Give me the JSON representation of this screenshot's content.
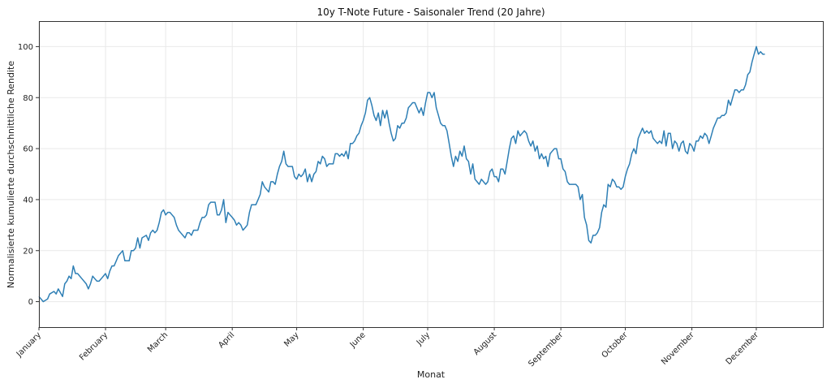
{
  "chart_data": {
    "type": "line",
    "title": "10y T-Note Future - Saisonaler Trend (20 Jahre)",
    "xlabel": "Monat",
    "ylabel": "Normalisierte kumulierte durchschnittliche Rendite",
    "xlim": [
      0,
      365
    ],
    "ylim": [
      -10,
      110
    ],
    "yticks": [
      0,
      20,
      40,
      60,
      80,
      100
    ],
    "grid": true,
    "color": "#2e7fb5",
    "months": [
      {
        "label": "January",
        "day": 0
      },
      {
        "label": "February",
        "day": 31
      },
      {
        "label": "March",
        "day": 59
      },
      {
        "label": "April",
        "day": 90
      },
      {
        "label": "May",
        "day": 120
      },
      {
        "label": "June",
        "day": 151
      },
      {
        "label": "July",
        "day": 181
      },
      {
        "label": "August",
        "day": 212
      },
      {
        "label": "September",
        "day": 243
      },
      {
        "label": "October",
        "day": 273
      },
      {
        "label": "November",
        "day": 304
      },
      {
        "label": "December",
        "day": 334
      }
    ],
    "series": [
      {
        "values": [
          [
            0,
            2
          ],
          [
            2,
            0
          ],
          [
            4,
            1
          ],
          [
            5,
            3
          ],
          [
            7,
            4
          ],
          [
            8,
            3
          ],
          [
            9,
            5
          ],
          [
            11,
            2
          ],
          [
            12,
            7
          ],
          [
            13,
            8
          ],
          [
            14,
            10
          ],
          [
            15,
            9
          ],
          [
            16,
            14
          ],
          [
            17,
            11
          ],
          [
            18,
            11
          ],
          [
            20,
            9
          ],
          [
            22,
            7
          ],
          [
            23,
            5
          ],
          [
            24,
            7
          ],
          [
            25,
            10
          ],
          [
            26,
            9
          ],
          [
            27,
            8
          ],
          [
            28,
            8
          ],
          [
            29,
            9
          ],
          [
            31,
            11
          ],
          [
            32,
            9
          ],
          [
            33,
            12
          ],
          [
            34,
            14
          ],
          [
            35,
            14
          ],
          [
            36,
            16
          ],
          [
            37,
            18
          ],
          [
            38,
            19
          ],
          [
            39,
            20
          ],
          [
            40,
            16
          ],
          [
            42,
            16
          ],
          [
            43,
            20
          ],
          [
            44,
            20
          ],
          [
            45,
            21
          ],
          [
            46,
            25
          ],
          [
            47,
            21
          ],
          [
            48,
            25
          ],
          [
            50,
            26
          ],
          [
            51,
            24
          ],
          [
            52,
            27
          ],
          [
            53,
            28
          ],
          [
            54,
            27
          ],
          [
            55,
            28
          ],
          [
            56,
            31
          ],
          [
            57,
            35
          ],
          [
            58,
            36
          ],
          [
            59,
            34
          ],
          [
            60,
            35
          ],
          [
            61,
            35
          ],
          [
            62,
            34
          ],
          [
            63,
            33
          ],
          [
            64,
            30
          ],
          [
            65,
            28
          ],
          [
            66,
            27
          ],
          [
            67,
            26
          ],
          [
            68,
            25
          ],
          [
            69,
            27
          ],
          [
            70,
            27
          ],
          [
            71,
            26
          ],
          [
            72,
            28
          ],
          [
            73,
            28
          ],
          [
            74,
            28
          ],
          [
            75,
            31
          ],
          [
            76,
            33
          ],
          [
            77,
            33
          ],
          [
            78,
            34
          ],
          [
            79,
            38
          ],
          [
            80,
            39
          ],
          [
            81,
            39
          ],
          [
            82,
            39
          ],
          [
            83,
            34
          ],
          [
            84,
            34
          ],
          [
            85,
            36
          ],
          [
            86,
            40
          ],
          [
            87,
            31
          ],
          [
            88,
            35
          ],
          [
            89,
            34
          ],
          [
            90,
            33
          ],
          [
            91,
            32
          ],
          [
            92,
            30
          ],
          [
            93,
            31
          ],
          [
            94,
            30
          ],
          [
            95,
            28
          ],
          [
            96,
            29
          ],
          [
            97,
            30
          ],
          [
            98,
            35
          ],
          [
            99,
            38
          ],
          [
            100,
            38
          ],
          [
            101,
            38
          ],
          [
            102,
            40
          ],
          [
            103,
            42
          ],
          [
            104,
            47
          ],
          [
            105,
            45
          ],
          [
            106,
            44
          ],
          [
            107,
            43
          ],
          [
            108,
            47
          ],
          [
            109,
            47
          ],
          [
            110,
            46
          ],
          [
            111,
            50
          ],
          [
            112,
            53
          ],
          [
            113,
            55
          ],
          [
            114,
            59
          ],
          [
            115,
            54
          ],
          [
            116,
            53
          ],
          [
            117,
            53
          ],
          [
            118,
            53
          ],
          [
            119,
            49
          ],
          [
            120,
            48
          ],
          [
            121,
            50
          ],
          [
            122,
            49
          ],
          [
            123,
            50
          ],
          [
            124,
            52
          ],
          [
            125,
            47
          ],
          [
            126,
            50
          ],
          [
            127,
            47
          ],
          [
            128,
            50
          ],
          [
            129,
            51
          ],
          [
            130,
            55
          ],
          [
            131,
            54
          ],
          [
            132,
            57
          ],
          [
            133,
            56
          ],
          [
            134,
            53
          ],
          [
            135,
            54
          ],
          [
            136,
            54
          ],
          [
            137,
            54
          ],
          [
            138,
            58
          ],
          [
            139,
            58
          ],
          [
            140,
            57
          ],
          [
            141,
            58
          ],
          [
            142,
            57
          ],
          [
            143,
            59
          ],
          [
            144,
            56
          ],
          [
            145,
            62
          ],
          [
            146,
            62
          ],
          [
            147,
            63
          ],
          [
            148,
            65
          ],
          [
            149,
            66
          ],
          [
            150,
            69
          ],
          [
            151,
            71
          ],
          [
            152,
            74
          ],
          [
            153,
            79
          ],
          [
            154,
            80
          ],
          [
            155,
            77
          ],
          [
            156,
            73
          ],
          [
            157,
            71
          ],
          [
            158,
            74
          ],
          [
            159,
            69
          ],
          [
            160,
            75
          ],
          [
            161,
            72
          ],
          [
            162,
            75
          ],
          [
            163,
            70
          ],
          [
            164,
            66
          ],
          [
            165,
            63
          ],
          [
            166,
            64
          ],
          [
            167,
            69
          ],
          [
            168,
            68
          ],
          [
            169,
            70
          ],
          [
            170,
            70
          ],
          [
            171,
            72
          ],
          [
            172,
            76
          ],
          [
            173,
            77
          ],
          [
            174,
            78
          ],
          [
            175,
            78
          ],
          [
            176,
            76
          ],
          [
            177,
            74
          ],
          [
            178,
            76
          ],
          [
            179,
            73
          ],
          [
            180,
            78
          ],
          [
            181,
            82
          ],
          [
            182,
            82
          ],
          [
            183,
            80
          ],
          [
            184,
            82
          ],
          [
            185,
            76
          ],
          [
            186,
            73
          ],
          [
            187,
            70
          ],
          [
            188,
            69
          ],
          [
            189,
            69
          ],
          [
            190,
            67
          ],
          [
            191,
            62
          ],
          [
            192,
            57
          ],
          [
            193,
            53
          ],
          [
            194,
            57
          ],
          [
            195,
            55
          ],
          [
            196,
            59
          ],
          [
            197,
            57
          ],
          [
            198,
            61
          ],
          [
            199,
            56
          ],
          [
            200,
            55
          ],
          [
            201,
            50
          ],
          [
            202,
            54
          ],
          [
            203,
            48
          ],
          [
            204,
            47
          ],
          [
            205,
            46
          ],
          [
            206,
            48
          ],
          [
            207,
            47
          ],
          [
            208,
            46
          ],
          [
            209,
            47
          ],
          [
            210,
            51
          ],
          [
            211,
            52
          ],
          [
            212,
            49
          ],
          [
            213,
            49
          ],
          [
            214,
            47
          ],
          [
            215,
            52
          ],
          [
            216,
            52
          ],
          [
            217,
            50
          ],
          [
            218,
            55
          ],
          [
            219,
            60
          ],
          [
            220,
            64
          ],
          [
            221,
            65
          ],
          [
            222,
            62
          ],
          [
            223,
            67
          ],
          [
            224,
            65
          ],
          [
            225,
            66
          ],
          [
            226,
            67
          ],
          [
            227,
            66
          ],
          [
            228,
            63
          ],
          [
            229,
            61
          ],
          [
            230,
            63
          ],
          [
            231,
            59
          ],
          [
            232,
            61
          ],
          [
            233,
            56
          ],
          [
            234,
            58
          ],
          [
            235,
            56
          ],
          [
            236,
            57
          ],
          [
            237,
            53
          ],
          [
            238,
            58
          ],
          [
            239,
            59
          ],
          [
            240,
            60
          ],
          [
            241,
            60
          ],
          [
            242,
            56
          ],
          [
            243,
            56
          ],
          [
            244,
            52
          ],
          [
            245,
            51
          ],
          [
            246,
            47
          ],
          [
            247,
            46
          ],
          [
            248,
            46
          ],
          [
            249,
            46
          ],
          [
            250,
            46
          ],
          [
            251,
            45
          ],
          [
            252,
            40
          ],
          [
            253,
            42
          ],
          [
            254,
            33
          ],
          [
            255,
            30
          ],
          [
            256,
            24
          ],
          [
            257,
            23
          ],
          [
            258,
            26
          ],
          [
            259,
            26
          ],
          [
            260,
            27
          ],
          [
            261,
            29
          ],
          [
            262,
            35
          ],
          [
            263,
            38
          ],
          [
            264,
            37
          ],
          [
            265,
            46
          ],
          [
            266,
            45
          ],
          [
            267,
            48
          ],
          [
            268,
            47
          ],
          [
            269,
            45
          ],
          [
            270,
            45
          ],
          [
            271,
            44
          ],
          [
            272,
            45
          ],
          [
            273,
            49
          ],
          [
            274,
            52
          ],
          [
            275,
            54
          ],
          [
            276,
            58
          ],
          [
            277,
            60
          ],
          [
            278,
            58
          ],
          [
            279,
            64
          ],
          [
            280,
            66
          ],
          [
            281,
            68
          ],
          [
            282,
            66
          ],
          [
            283,
            67
          ],
          [
            284,
            66
          ],
          [
            285,
            67
          ],
          [
            286,
            64
          ],
          [
            287,
            63
          ],
          [
            288,
            62
          ],
          [
            289,
            63
          ],
          [
            290,
            62
          ],
          [
            291,
            67
          ],
          [
            292,
            61
          ],
          [
            293,
            66
          ],
          [
            294,
            66
          ],
          [
            295,
            60
          ],
          [
            296,
            63
          ],
          [
            297,
            62
          ],
          [
            298,
            59
          ],
          [
            299,
            62
          ],
          [
            300,
            63
          ],
          [
            301,
            59
          ],
          [
            302,
            58
          ],
          [
            303,
            62
          ],
          [
            304,
            61
          ],
          [
            305,
            59
          ],
          [
            306,
            63
          ],
          [
            307,
            63
          ],
          [
            308,
            65
          ],
          [
            309,
            64
          ],
          [
            310,
            66
          ],
          [
            311,
            65
          ],
          [
            312,
            62
          ],
          [
            313,
            65
          ],
          [
            314,
            68
          ],
          [
            315,
            70
          ],
          [
            316,
            72
          ],
          [
            317,
            72
          ],
          [
            318,
            73
          ],
          [
            319,
            73
          ],
          [
            320,
            74
          ],
          [
            321,
            79
          ],
          [
            322,
            77
          ],
          [
            323,
            80
          ],
          [
            324,
            83
          ],
          [
            325,
            83
          ],
          [
            326,
            82
          ],
          [
            327,
            83
          ],
          [
            328,
            83
          ],
          [
            329,
            85
          ],
          [
            330,
            89
          ],
          [
            331,
            90
          ],
          [
            332,
            94
          ],
          [
            333,
            97
          ],
          [
            334,
            100
          ],
          [
            335,
            97
          ],
          [
            336,
            98
          ],
          [
            337,
            97
          ],
          [
            338,
            97
          ]
        ]
      }
    ]
  }
}
